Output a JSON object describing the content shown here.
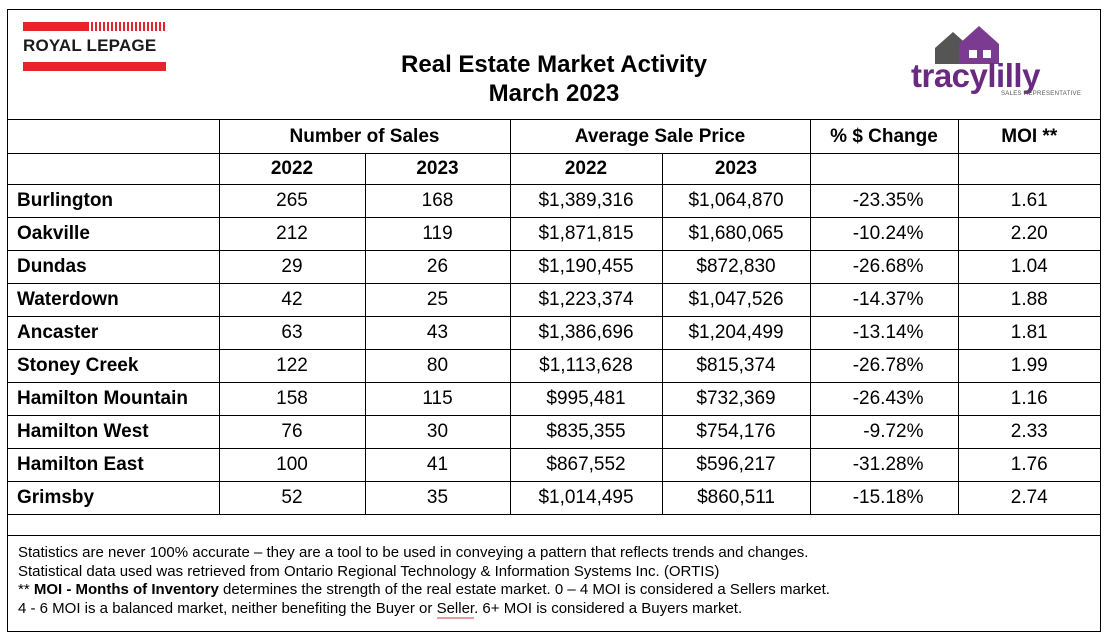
{
  "header": {
    "brand_left": "ROYAL LEPAGE",
    "title_line1": "Real Estate Market Activity",
    "title_line2": "March 2023",
    "brand_right": "tracylilly",
    "brand_right_sub": "SALES REPRESENTATIVE"
  },
  "table": {
    "groups": [
      "Number of Sales",
      "Average Sale Price",
      "% $ Change",
      "MOI **"
    ],
    "years": [
      "2022",
      "2023",
      "2022",
      "2023"
    ],
    "rows": [
      {
        "area": "Burlington",
        "sales_2022": "265",
        "sales_2023": "168",
        "price_2022": "$1,389,316",
        "price_2023": "$1,064,870",
        "change": "-23.35%",
        "moi": "1.61"
      },
      {
        "area": "Oakville",
        "sales_2022": "212",
        "sales_2023": "119",
        "price_2022": "$1,871,815",
        "price_2023": "$1,680,065",
        "change": "-10.24%",
        "moi": "2.20"
      },
      {
        "area": "Dundas",
        "sales_2022": "29",
        "sales_2023": "26",
        "price_2022": "$1,190,455",
        "price_2023": "$872,830",
        "change": "-26.68%",
        "moi": "1.04"
      },
      {
        "area": "Waterdown",
        "sales_2022": "42",
        "sales_2023": "25",
        "price_2022": "$1,223,374",
        "price_2023": "$1,047,526",
        "change": "-14.37%",
        "moi": "1.88"
      },
      {
        "area": "Ancaster",
        "sales_2022": "63",
        "sales_2023": "43",
        "price_2022": "$1,386,696",
        "price_2023": "$1,204,499",
        "change": "-13.14%",
        "moi": "1.81"
      },
      {
        "area": "Stoney Creek",
        "sales_2022": "122",
        "sales_2023": "80",
        "price_2022": "$1,113,628",
        "price_2023": "$815,374",
        "change": "-26.78%",
        "moi": "1.99"
      },
      {
        "area": "Hamilton Mountain",
        "sales_2022": "158",
        "sales_2023": "115",
        "price_2022": "$995,481",
        "price_2023": "$732,369",
        "change": "-26.43%",
        "moi": "1.16"
      },
      {
        "area": "Hamilton West",
        "sales_2022": "76",
        "sales_2023": "30",
        "price_2022": "$835,355",
        "price_2023": "$754,176",
        "change": "-9.72%",
        "moi": "2.33"
      },
      {
        "area": "Hamilton East",
        "sales_2022": "100",
        "sales_2023": "41",
        "price_2022": "$867,552",
        "price_2023": "$596,217",
        "change": "-31.28%",
        "moi": "1.76"
      },
      {
        "area": "Grimsby",
        "sales_2022": "52",
        "sales_2023": "35",
        "price_2022": "$1,014,495",
        "price_2023": "$860,511",
        "change": "-15.18%",
        "moi": "2.74"
      }
    ]
  },
  "footer": {
    "line1": "Statistics are never 100% accurate – they are a tool to be used in conveying a pattern that reflects trends and changes.",
    "line2": "Statistical data used was retrieved from Ontario Regional Technology & Information Systems Inc. (ORTIS)",
    "line3_prefix": "** ",
    "line3_bold": "MOI - Months of Inventory",
    "line3_rest": " determines the strength of the real estate market. 0 – 4 MOI is considered a Sellers market.",
    "line4_prefix": "4 - 6 MOI is a balanced market, neither benefiting the Buyer or ",
    "line4_underlined": "Seller",
    "line4_suffix": ". 6+ MOI is considered a Buyers market."
  }
}
